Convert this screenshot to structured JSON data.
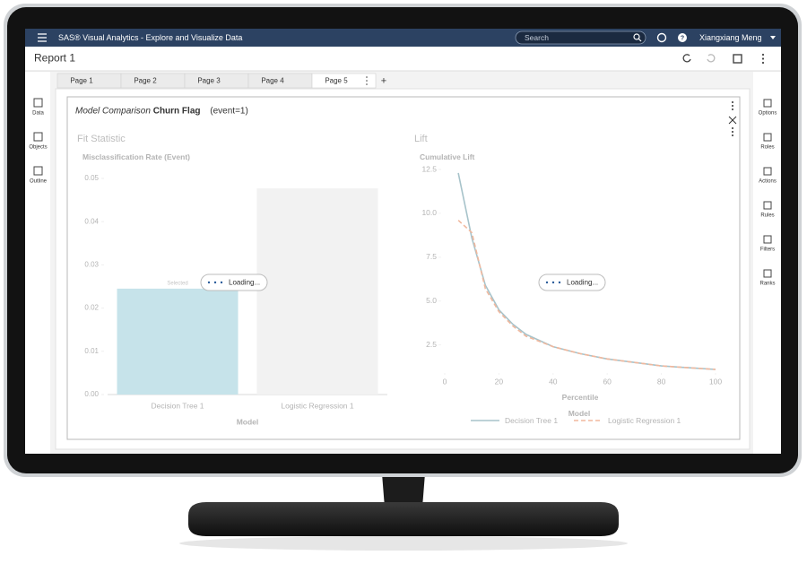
{
  "app_bar": {
    "title": "SAS® Visual Analytics - Explore and Visualize Data",
    "search_placeholder": "Search",
    "user": "Xiangxiang Meng"
  },
  "report": {
    "title": "Report 1",
    "tabs": [
      "Page 1",
      "Page 2",
      "Page 3",
      "Page 4",
      "Page 5"
    ],
    "active_tab": 4
  },
  "left_panel": [
    "Data",
    "Objects",
    "Outline"
  ],
  "right_panel": [
    "Options",
    "Roles",
    "Actions",
    "Rules",
    "Filters",
    "Ranks"
  ],
  "object": {
    "title_italic": "Model Comparison",
    "title_bold": "Churn Flag",
    "title_suffix": "(event=1)"
  },
  "chart_data": [
    {
      "type": "bar",
      "title": "Fit Statistic",
      "y_label": "Misclassification Rate (Event)",
      "x_label": "Model",
      "categories": [
        "Decision Tree 1",
        "Logistic Regression 1"
      ],
      "values": [
        0.0245,
        0.0477
      ],
      "colors": [
        "#c6e3ea",
        "#f2f2f2"
      ],
      "annotation": "Selected",
      "loading_text": "Loading...",
      "ylim": [
        0,
        0.05
      ],
      "yticks": [
        {
          "value": 0,
          "label": "0.00"
        },
        0.01,
        0.02,
        0.03,
        0.04,
        0.05
      ]
    },
    {
      "type": "line",
      "title": "Lift",
      "y_label": "Cumulative Lift",
      "x_label": "Percentile",
      "legend_title": "Model",
      "loading_text": "Loading...",
      "x": [
        5,
        10,
        15,
        20,
        25,
        30,
        40,
        50,
        60,
        70,
        80,
        90,
        100
      ],
      "series": [
        {
          "name": "Decision Tree 1",
          "color": "#a7c3ca",
          "dashed": false,
          "values": [
            12.3,
            8.6,
            5.9,
            4.5,
            3.7,
            3.1,
            2.4,
            2.0,
            1.7,
            1.5,
            1.3,
            1.2,
            1.1
          ]
        },
        {
          "name": "Logistic Regression 1",
          "color": "#f0b89e",
          "dashed": true,
          "values": [
            9.6,
            8.9,
            5.7,
            4.4,
            3.6,
            3.0,
            2.4,
            2.0,
            1.7,
            1.5,
            1.3,
            1.2,
            1.1
          ]
        }
      ],
      "xlim": [
        0,
        100
      ],
      "xticks": [
        0,
        20,
        40,
        60,
        80,
        100
      ],
      "ylim": [
        1,
        12.5
      ],
      "yticks": [
        2.5,
        {
          "value": 5,
          "label": "5.0"
        },
        7.5,
        {
          "value": 10,
          "label": "10.0"
        },
        12.5
      ]
    }
  ]
}
